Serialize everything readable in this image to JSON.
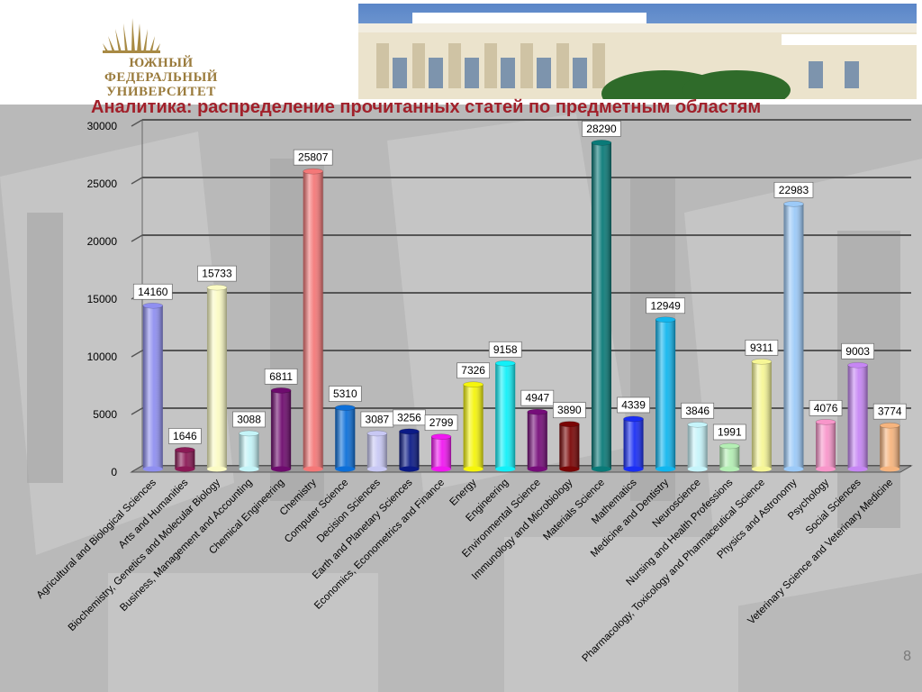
{
  "slide": {
    "title": "Аналитика: распределение прочитанных статей по предметным областям",
    "page_number": "8",
    "logo_lines": [
      "ЮЖНЫЙ",
      "ФЕДЕРАЛЬНЫЙ",
      "УНИВЕРСИТЕТ"
    ]
  },
  "chart_data": {
    "type": "bar",
    "title": "",
    "xlabel": "",
    "ylabel": "",
    "ylim": [
      0,
      30000
    ],
    "yticks": [
      0,
      5000,
      10000,
      15000,
      20000,
      25000,
      30000
    ],
    "grid": true,
    "legend": "none",
    "categories": [
      "Agricultural and Biological Sciences",
      "Arts and Humanities",
      "Biochemistry, Genetics and Molecular Biology",
      "Business, Management and Accounting",
      "Chemical Engineering",
      "Chemistry",
      "Computer Science",
      "Decision Sciences",
      "Earth and Planetary Sciences",
      "Economics, Econometrics and Finance",
      "Energy",
      "Engineering",
      "Environmental Science",
      "Immunology and Microbiology",
      "Materials Science",
      "Mathematics",
      "Medicine and Dentistry",
      "Neuroscience",
      "Nursing and Health Professions",
      "Pharmacology, Toxicology and Pharmaceutical Science",
      "Physics and Astronomy",
      "Psychology",
      "Social Sciences",
      "Veterinary Science and Veterinary Medicine"
    ],
    "values": [
      14160,
      1646,
      15733,
      3088,
      6811,
      25807,
      5310,
      3087,
      3256,
      2799,
      7326,
      9158,
      4947,
      3890,
      28290,
      4339,
      12949,
      3846,
      1991,
      9311,
      22983,
      4076,
      9003,
      3774
    ],
    "data_labels": [
      "14160",
      "1646",
      "15733",
      "3088",
      "6811",
      "25807",
      "5310",
      "3087",
      "3256",
      "2799",
      "7326",
      "9158",
      "4947",
      "3890",
      "28290",
      "4339",
      "12949",
      "3846",
      "1991",
      "9311",
      "22983",
      "4076",
      "9003",
      "3774"
    ],
    "colors": [
      "#8f8ff0",
      "#8b1a56",
      "#fbfbc4",
      "#c4f4f8",
      "#6e0b6e",
      "#f47878",
      "#0d6fd8",
      "#c8c8f4",
      "#0b1a86",
      "#f018f0",
      "#f5f50c",
      "#12f0f8",
      "#760d7a",
      "#7a0606",
      "#0a7a78",
      "#1a2ef4",
      "#12b6ee",
      "#c6f4fa",
      "#b4eeb4",
      "#f6f696",
      "#9ccaf8",
      "#f896ca",
      "#c686f4",
      "#f6b47e"
    ]
  }
}
